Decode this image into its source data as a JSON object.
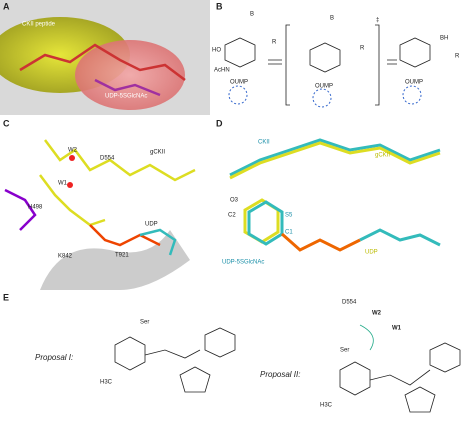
{
  "panels": {
    "a": {
      "letter": "A",
      "labels": [
        "CKII peptide",
        "UDP-5SGlcNAc"
      ]
    },
    "b": {
      "letter": "B",
      "labels": [
        "B",
        "R",
        "HO",
        "AcHN",
        "OUMP",
        "B",
        "R",
        "OUMP",
        "BH",
        "R",
        "OUMP",
        "‡"
      ]
    },
    "c": {
      "letter": "C",
      "labels": [
        "W2",
        "D554",
        "gCKII",
        "W1",
        "UDP",
        "H498",
        "T921",
        "K842"
      ]
    },
    "d": {
      "letter": "D",
      "labels": [
        "CKII",
        "gCKII",
        "O3",
        "C2",
        "S5",
        "C1",
        "UDP",
        "UDP-5SGlcNAc"
      ]
    },
    "e": {
      "letter": "E",
      "labels": [
        "Proposal I:",
        "Proposal II:",
        "Ser",
        "Ser",
        "D554",
        "W2",
        "W1",
        "H3C",
        "H3C"
      ]
    }
  }
}
